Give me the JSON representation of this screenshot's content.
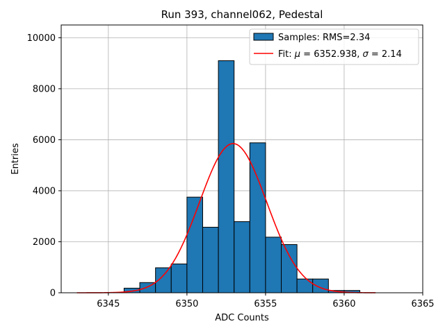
{
  "chart_data": {
    "type": "histogram",
    "title": "Run 393, channel062, Pedestal",
    "xlabel": "ADC Counts",
    "ylabel": "Entries",
    "xlim": [
      6342.0,
      6365.0
    ],
    "ylim": [
      0,
      10500
    ],
    "xticks": [
      6345,
      6350,
      6355,
      6360,
      6365
    ],
    "yticks": [
      0,
      2000,
      4000,
      6000,
      8000,
      10000
    ],
    "grid": true,
    "legend_position": "top-right",
    "bar_color": "#1f77b4",
    "fit_color": "#ff0000",
    "bins": [
      {
        "left": 6346,
        "right": 6347,
        "count": 180
      },
      {
        "left": 6347,
        "right": 6348,
        "count": 400
      },
      {
        "left": 6348,
        "right": 6349,
        "count": 980
      },
      {
        "left": 6349,
        "right": 6350,
        "count": 1130
      },
      {
        "left": 6350,
        "right": 6351,
        "count": 3750
      },
      {
        "left": 6351,
        "right": 6352,
        "count": 2570
      },
      {
        "left": 6352,
        "right": 6353,
        "count": 9100
      },
      {
        "left": 6353,
        "right": 6354,
        "count": 2790
      },
      {
        "left": 6354,
        "right": 6355,
        "count": 5880
      },
      {
        "left": 6355,
        "right": 6356,
        "count": 2180
      },
      {
        "left": 6356,
        "right": 6357,
        "count": 1890
      },
      {
        "left": 6357,
        "right": 6358,
        "count": 540
      },
      {
        "left": 6358,
        "right": 6359,
        "count": 540
      },
      {
        "left": 6359,
        "right": 6360,
        "count": 90
      },
      {
        "left": 6360,
        "right": 6361,
        "count": 90
      }
    ],
    "fit": {
      "type": "gaussian",
      "mu": 6352.938,
      "sigma": 2.14,
      "amplitude": 5850,
      "x_range": [
        6343,
        6362
      ]
    },
    "legend": [
      {
        "label": "Samples: RMS=2.34",
        "kind": "patch"
      },
      {
        "label_prefix": "Fit: ",
        "mu_symbol": "μ",
        "mu_text": " = 6352.938, ",
        "sigma_symbol": "σ",
        "sigma_text": " = 2.14",
        "kind": "line"
      }
    ]
  }
}
